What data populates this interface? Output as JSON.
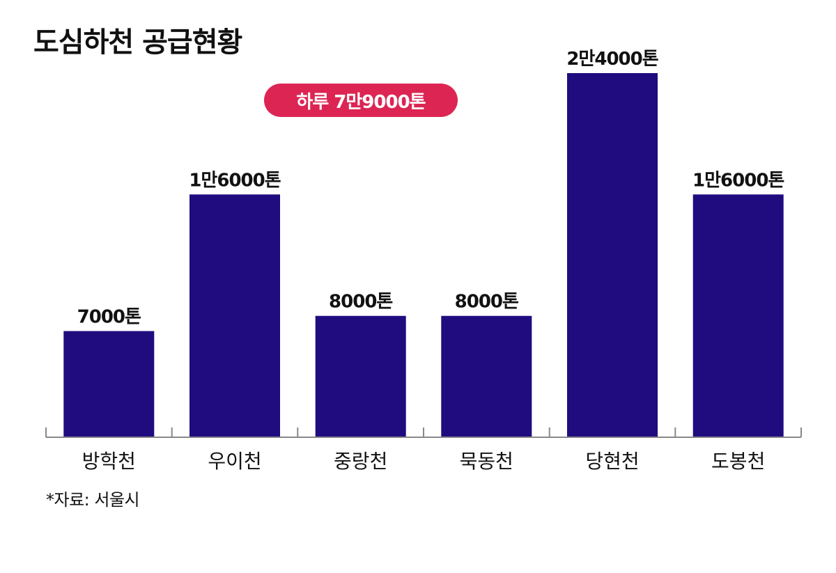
{
  "title": "도심하천 공급현황",
  "total_badge": "하루 7만9000톤",
  "source": "*자료: 서울시",
  "colors": {
    "bar": "#200c7f",
    "badge": "#dc2553",
    "axis": "#888888",
    "text": "#111111"
  },
  "chart_data": {
    "type": "bar",
    "title": "도심하천 공급현황",
    "xlabel": "",
    "ylabel": "",
    "unit": "톤",
    "categories": [
      "방학천",
      "우이천",
      "중랑천",
      "묵동천",
      "당현천",
      "도봉천"
    ],
    "values": [
      7000,
      16000,
      8000,
      8000,
      24000,
      16000
    ],
    "value_labels": [
      "7000톤",
      "1만6000톤",
      "8000톤",
      "8000톤",
      "2만4000톤",
      "1만6000톤"
    ],
    "ylim": [
      0,
      24000
    ],
    "grid": false,
    "legend": "none"
  }
}
